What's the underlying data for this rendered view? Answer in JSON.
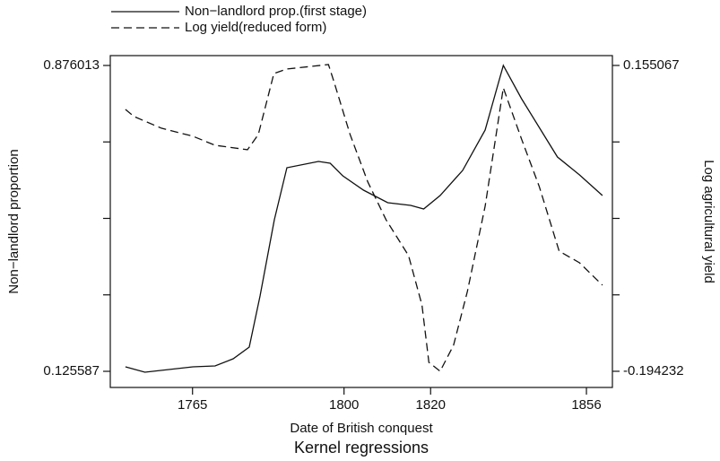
{
  "chart_data": {
    "type": "line",
    "title": "Kernel regressions",
    "x_label": "Date of British conquest",
    "y_label": "Non−landlord proportion",
    "y2_label": "Log agricultural yield",
    "xlim": [
      1746,
      1862
    ],
    "xticks": [
      1765,
      1800,
      1820,
      1856
    ],
    "ylim": [
      0.086,
      0.9002
    ],
    "yticks": [
      0.125587,
      0.876013
    ],
    "y2lim": [
      -0.2127,
      0.1663
    ],
    "y2ticks": [
      -0.194232,
      0.155067
    ],
    "legend": "top",
    "series": [
      {
        "name": "Non−landlord prop.(first stage)",
        "color": "#111111",
        "dash": "solid",
        "x": [
          1749.5,
          1754.0,
          1765.1,
          1770.2,
          1774.4,
          1778.1,
          1780.6,
          1783.9,
          1786.8,
          1794.1,
          1796.8,
          1799.7,
          1804.5,
          1810.1,
          1815.4,
          1818.4,
          1822.2,
          1827.4,
          1832.6,
          1836.8,
          1841.0,
          1849.3,
          1854.4,
          1859.7
        ],
        "values": [
          0.1366,
          0.1234,
          0.1366,
          0.1388,
          0.1564,
          0.185,
          0.3104,
          0.4975,
          0.6251,
          0.6405,
          0.6361,
          0.6053,
          0.5701,
          0.5393,
          0.5327,
          0.5239,
          0.5569,
          0.6185,
          0.7176,
          0.876,
          0.7946,
          0.6515,
          0.6075,
          0.5569
        ]
      },
      {
        "name": "Log yield(reduced form)",
        "color": "#111111",
        "dash": "dashed",
        "axis": "y2",
        "x": [
          1749.5,
          1751.5,
          1757.8,
          1765.1,
          1770.2,
          1777.7,
          1780.2,
          1783.8,
          1786.8,
          1796.4,
          1797.6,
          1801.4,
          1805.5,
          1809.7,
          1814.9,
          1818.0,
          1819.6,
          1822.2,
          1825.3,
          1828.5,
          1832.6,
          1836.8,
          1841.0,
          1845.1,
          1849.7,
          1854.4,
          1859.7
        ],
        "values": [
          0.1049,
          0.0967,
          0.0834,
          0.0742,
          0.0639,
          0.0588,
          0.0762,
          0.1459,
          0.151,
          0.1561,
          0.1377,
          0.0762,
          0.0219,
          -0.0211,
          -0.0621,
          -0.1184,
          -0.184,
          -0.1942,
          -0.1645,
          -0.103,
          -0.0057,
          0.1295,
          0.0711,
          0.0168,
          -0.057,
          -0.0703,
          -0.0959
        ]
      }
    ]
  }
}
